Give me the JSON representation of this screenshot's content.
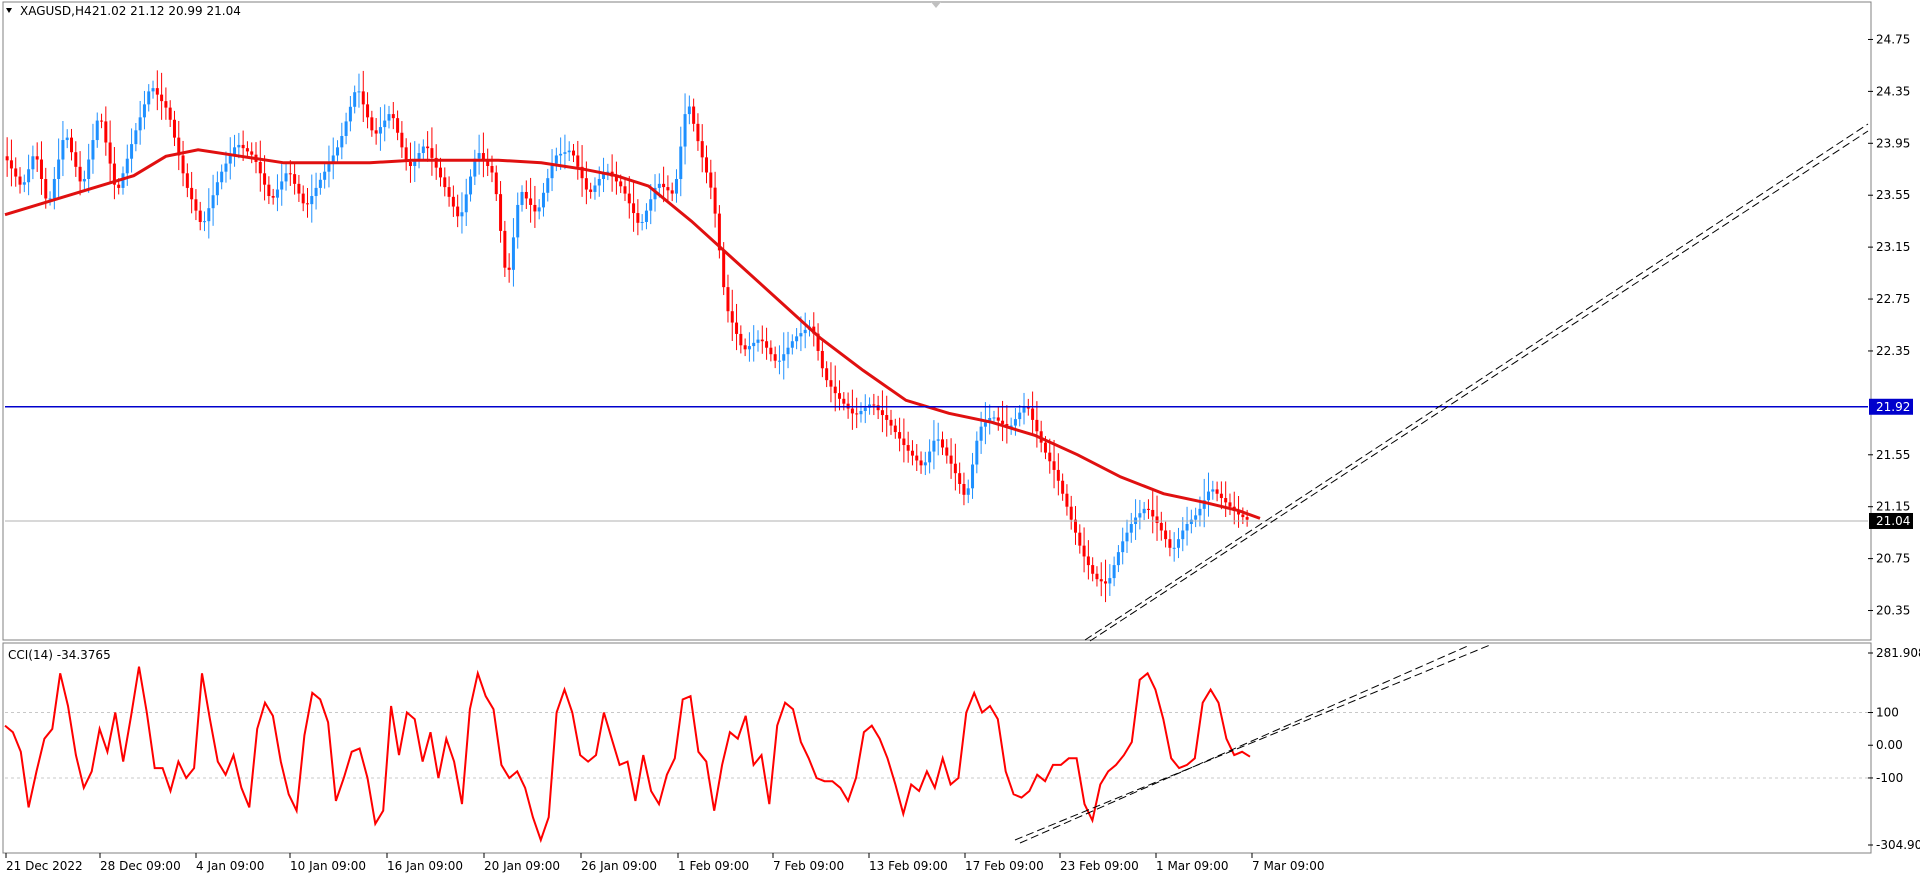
{
  "header": {
    "symbol": "XAGUSD,H4",
    "ohlc": "21.02 21.12 20.99 21.04"
  },
  "colors": {
    "bull": "#1e90ff",
    "bear": "#ff0000",
    "ma": "#e01010",
    "hline": "#0000cc",
    "cci": "#ff0000",
    "trend": "#000000",
    "grid": "#c8c8c8"
  },
  "chart_data": [
    {
      "type": "candlestick",
      "title": "XAGUSD,H4",
      "y_ticks": [
        "24.75",
        "24.35",
        "23.95",
        "23.55",
        "23.15",
        "22.75",
        "22.35",
        "21.55",
        "21.15",
        "20.75",
        "20.35"
      ],
      "ylim": [
        20.2,
        24.9
      ],
      "x_ticks": [
        "21 Dec 2022",
        "28 Dec 09:00",
        "4 Jan 09:00",
        "10 Jan 09:00",
        "16 Jan 09:00",
        "20 Jan 09:00",
        "26 Jan 09:00",
        "1 Feb 09:00",
        "7 Feb 09:00",
        "13 Feb 09:00",
        "17 Feb 09:00",
        "23 Feb 09:00",
        "1 Mar 09:00",
        "7 Mar 09:00"
      ],
      "horizontal_level": {
        "value": 21.92,
        "label": "21.92"
      },
      "current_price": {
        "value": 21.04,
        "label": "21.04"
      },
      "moving_average_path": [
        [
          0,
          23.4
        ],
        [
          20,
          23.5
        ],
        [
          40,
          23.6
        ],
        [
          60,
          23.7
        ],
        [
          75,
          23.85
        ],
        [
          90,
          23.9
        ],
        [
          110,
          23.85
        ],
        [
          130,
          23.8
        ],
        [
          150,
          23.8
        ],
        [
          170,
          23.8
        ],
        [
          190,
          23.82
        ],
        [
          210,
          23.82
        ],
        [
          230,
          23.82
        ],
        [
          250,
          23.8
        ],
        [
          270,
          23.75
        ],
        [
          285,
          23.7
        ],
        [
          300,
          23.62
        ],
        [
          320,
          23.35
        ],
        [
          340,
          23.05
        ],
        [
          360,
          22.75
        ],
        [
          380,
          22.45
        ],
        [
          400,
          22.2
        ],
        [
          420,
          21.97
        ],
        [
          440,
          21.87
        ],
        [
          460,
          21.8
        ],
        [
          480,
          21.7
        ],
        [
          500,
          21.55
        ],
        [
          520,
          21.38
        ],
        [
          540,
          21.25
        ],
        [
          560,
          21.18
        ],
        [
          575,
          21.12
        ],
        [
          585,
          21.06
        ]
      ],
      "price_path": [
        [
          0,
          23.85
        ],
        [
          8,
          23.6
        ],
        [
          14,
          23.9
        ],
        [
          20,
          23.45
        ],
        [
          28,
          24.05
        ],
        [
          36,
          23.6
        ],
        [
          44,
          24.2
        ],
        [
          52,
          23.55
        ],
        [
          60,
          24.0
        ],
        [
          68,
          24.4
        ],
        [
          76,
          24.2
        ],
        [
          84,
          23.65
        ],
        [
          92,
          23.3
        ],
        [
          100,
          23.7
        ],
        [
          108,
          23.95
        ],
        [
          116,
          23.85
        ],
        [
          124,
          23.5
        ],
        [
          132,
          23.75
        ],
        [
          140,
          23.45
        ],
        [
          148,
          23.7
        ],
        [
          156,
          23.95
        ],
        [
          164,
          24.4
        ],
        [
          172,
          24.0
        ],
        [
          180,
          24.2
        ],
        [
          188,
          23.75
        ],
        [
          196,
          23.95
        ],
        [
          204,
          23.65
        ],
        [
          212,
          23.35
        ],
        [
          220,
          23.9
        ],
        [
          228,
          23.7
        ],
        [
          234,
          22.85
        ],
        [
          240,
          23.6
        ],
        [
          248,
          23.4
        ],
        [
          256,
          23.85
        ],
        [
          264,
          23.9
        ],
        [
          272,
          23.55
        ],
        [
          280,
          23.75
        ],
        [
          288,
          23.6
        ],
        [
          296,
          23.3
        ],
        [
          304,
          23.65
        ],
        [
          312,
          23.55
        ],
        [
          318,
          24.3
        ],
        [
          324,
          23.9
        ],
        [
          330,
          23.55
        ],
        [
          336,
          22.7
        ],
        [
          344,
          22.35
        ],
        [
          352,
          22.45
        ],
        [
          360,
          22.25
        ],
        [
          368,
          22.45
        ],
        [
          376,
          22.55
        ],
        [
          382,
          22.15
        ],
        [
          388,
          22.0
        ],
        [
          396,
          21.85
        ],
        [
          404,
          21.95
        ],
        [
          412,
          21.8
        ],
        [
          420,
          21.6
        ],
        [
          428,
          21.45
        ],
        [
          434,
          21.7
        ],
        [
          442,
          21.45
        ],
        [
          448,
          21.2
        ],
        [
          454,
          21.75
        ],
        [
          460,
          21.85
        ],
        [
          468,
          21.75
        ],
        [
          476,
          21.95
        ],
        [
          484,
          21.6
        ],
        [
          490,
          21.4
        ],
        [
          496,
          21.1
        ],
        [
          502,
          20.8
        ],
        [
          508,
          20.6
        ],
        [
          514,
          20.55
        ],
        [
          520,
          20.85
        ],
        [
          526,
          21.05
        ],
        [
          532,
          21.15
        ],
        [
          538,
          21.0
        ],
        [
          544,
          20.8
        ],
        [
          550,
          21.0
        ],
        [
          556,
          21.1
        ],
        [
          562,
          21.3
        ],
        [
          568,
          21.2
        ],
        [
          574,
          21.1
        ],
        [
          580,
          21.04
        ]
      ]
    },
    {
      "type": "line",
      "title": "CCI(14) -34.3765",
      "y_ticks": [
        "281.908",
        "100",
        "0.00",
        "-100",
        "-304.905"
      ],
      "ylim": [
        -304.905,
        281.908
      ],
      "series": [
        {
          "name": "CCI(14)",
          "values": [
            60,
            40,
            -20,
            -190,
            -80,
            20,
            50,
            220,
            120,
            -30,
            -130,
            -80,
            50,
            -20,
            100,
            -50,
            90,
            240,
            100,
            -70,
            -70,
            -140,
            -50,
            -100,
            -70,
            220,
            80,
            -50,
            -90,
            -30,
            -130,
            -190,
            50,
            130,
            90,
            -50,
            -150,
            -200,
            30,
            160,
            140,
            70,
            -170,
            -100,
            -20,
            -10,
            -100,
            -240,
            -200,
            120,
            -30,
            100,
            80,
            -50,
            40,
            -100,
            20,
            -50,
            -180,
            110,
            220,
            150,
            110,
            -60,
            -100,
            -80,
            -130,
            -220,
            -290,
            -220,
            100,
            170,
            100,
            -30,
            -50,
            -30,
            100,
            20,
            -60,
            -50,
            -170,
            -30,
            -140,
            -180,
            -90,
            -40,
            140,
            150,
            -20,
            -50,
            -200,
            -60,
            40,
            20,
            90,
            -60,
            -30,
            -180,
            60,
            130,
            110,
            10,
            -40,
            -100,
            -110,
            -110,
            -130,
            -170,
            -100,
            40,
            60,
            20,
            -40,
            -120,
            -210,
            -120,
            -140,
            -80,
            -130,
            -40,
            -120,
            -100,
            100,
            160,
            100,
            120,
            80,
            -80,
            -150,
            -160,
            -140,
            -90,
            -110,
            -60,
            -60,
            -40,
            -40,
            -180,
            -230,
            -120,
            -80,
            -60,
            -30,
            10,
            200,
            220,
            170,
            80,
            -40,
            -70,
            -60,
            -40,
            130,
            170,
            130,
            20,
            -30,
            -20,
            -35
          ],
          "last": -34.3765
        }
      ]
    }
  ]
}
